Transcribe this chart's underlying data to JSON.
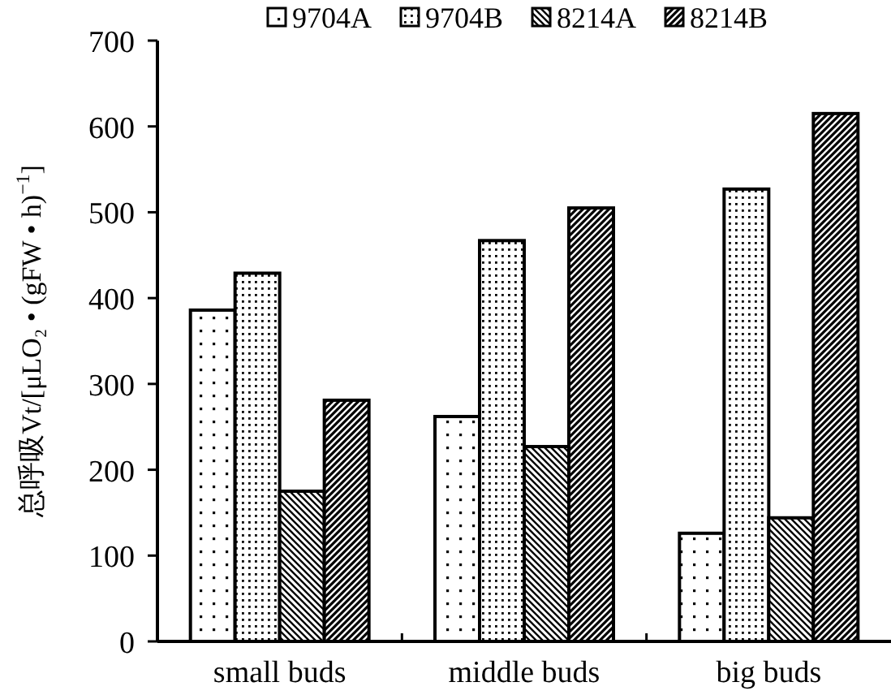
{
  "chart_data": {
    "type": "bar",
    "ylabel": "总呼吸Vt/[μLO₂ • (gFW • h)$^{−1}$]",
    "categories": [
      "small buds",
      "middle buds",
      "big buds"
    ],
    "series": [
      {
        "name": "9704A",
        "color": "#000000",
        "values": [
          386,
          262,
          126
        ]
      },
      {
        "name": "9704B",
        "color": "#000000",
        "values": [
          429,
          467,
          527
        ]
      },
      {
        "name": "8214A",
        "color": "#000000",
        "values": [
          175,
          227,
          144
        ]
      },
      {
        "name": "8214B",
        "color": "#000000",
        "values": [
          281,
          505,
          615
        ]
      }
    ],
    "ylim": [
      0,
      700
    ],
    "yticks": [
      0,
      100,
      200,
      300,
      400,
      500,
      600,
      700
    ],
    "legend": "top"
  }
}
